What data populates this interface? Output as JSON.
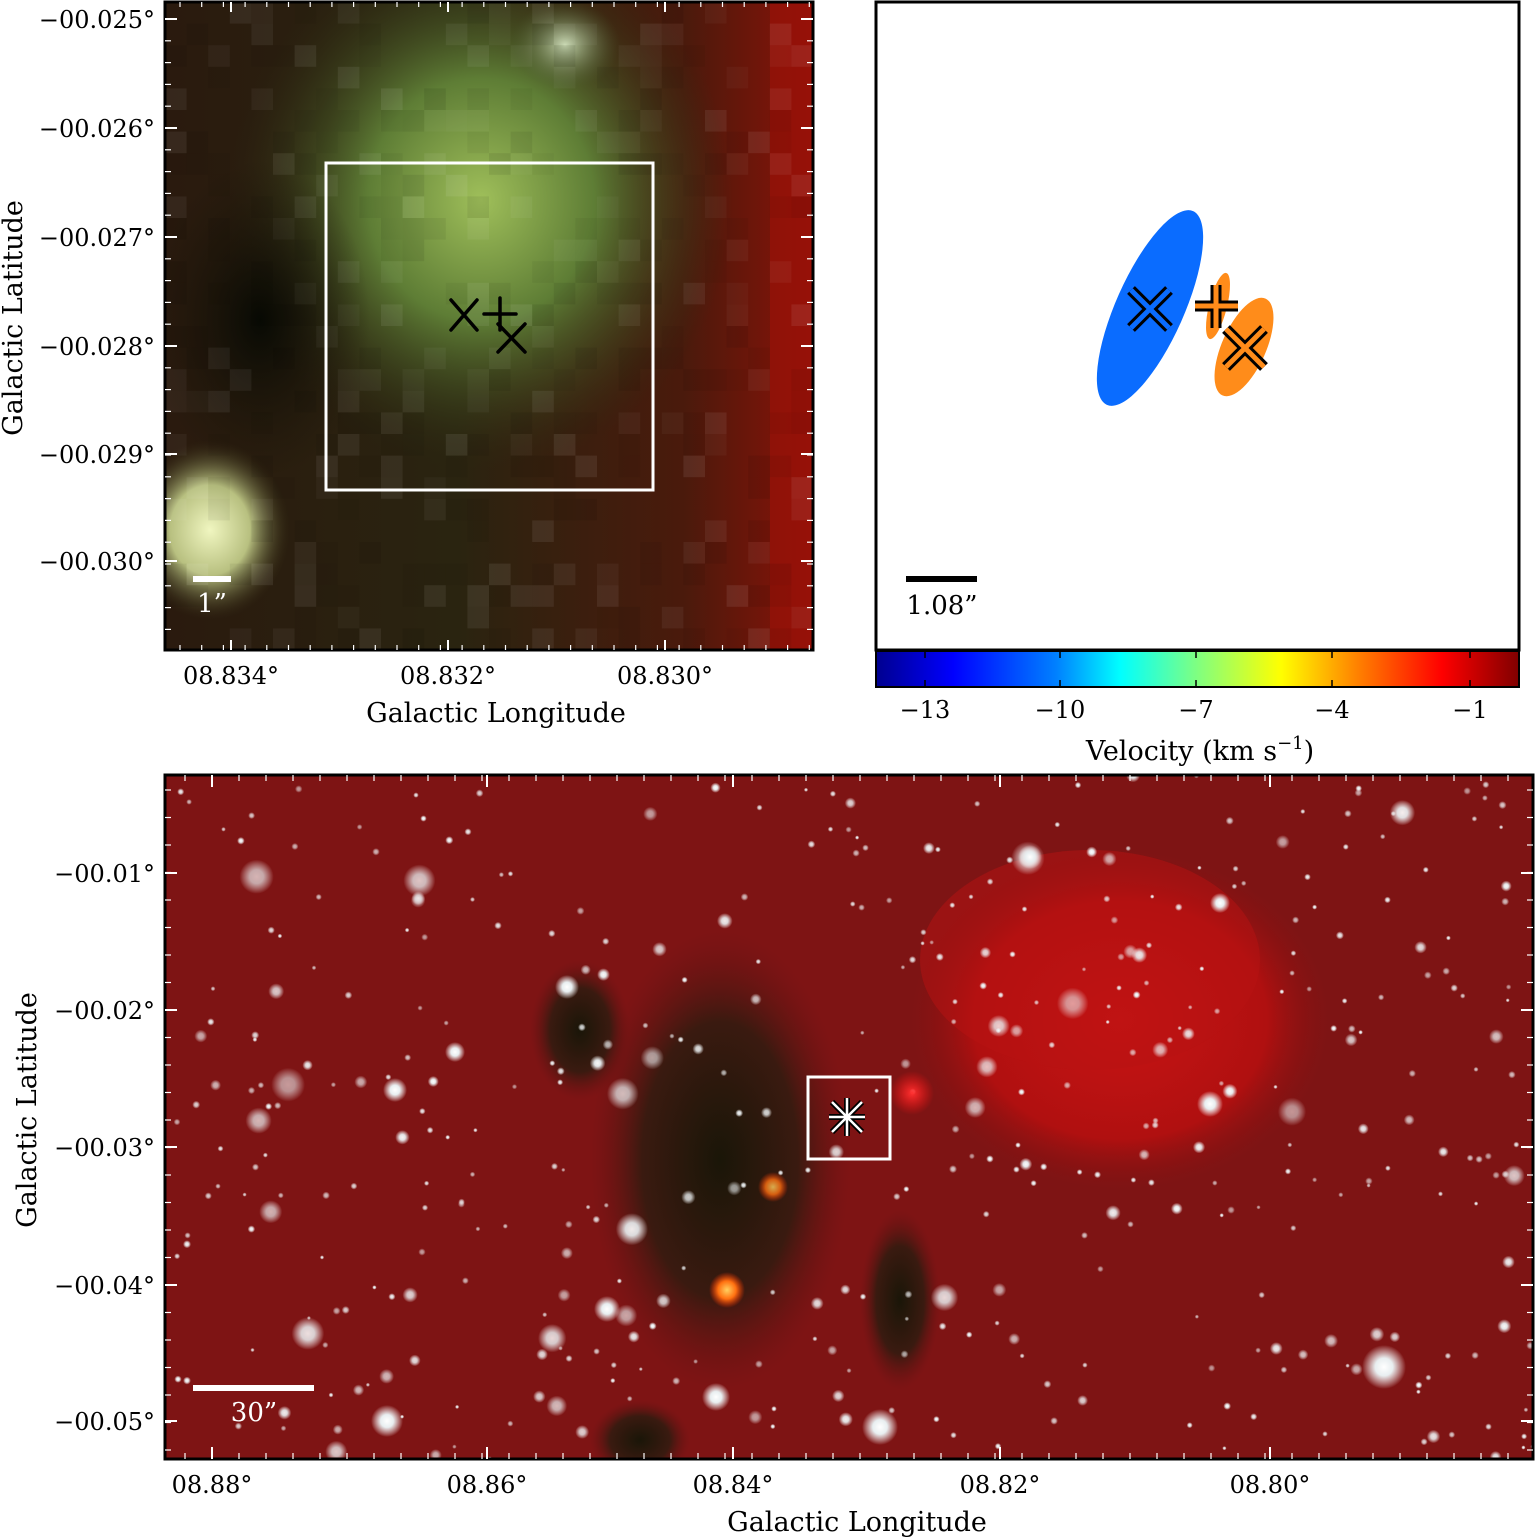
{
  "top_left_panel": {
    "x_axis_title": "Galactic Longitude",
    "y_axis_title": "Galactic Latitude",
    "x_ticks": [
      "08.834°",
      "08.832°",
      "08.830°"
    ],
    "y_ticks": [
      "−00.025°",
      "−00.026°",
      "−00.027°",
      "−00.028°",
      "−00.029°",
      "−00.030°"
    ],
    "scale_bar_label": "1”",
    "markers": [
      "cross-x",
      "plus",
      "cross-x"
    ]
  },
  "top_right_panel": {
    "scale_bar_label": "1.08”",
    "colorbar_title": "Velocity (km s",
    "colorbar_title_exp": "−1",
    "colorbar_title_end": ")",
    "colorbar_ticks": [
      "−13",
      "−10",
      "−7",
      "−4",
      "−1"
    ],
    "colorbar_stops": [
      "#00008f",
      "#0000ff",
      "#0080ff",
      "#00ffff",
      "#80ff80",
      "#ffff00",
      "#ff8000",
      "#ff0000",
      "#800000"
    ],
    "ellipse_colors": {
      "blue": "#0a6cff",
      "orange": "#ff8c1a"
    }
  },
  "bottom_panel": {
    "x_axis_title": "Galactic Longitude",
    "y_axis_title": "Galactic Latitude",
    "x_ticks": [
      "08.88°",
      "08.86°",
      "08.84°",
      "08.82°",
      "08.80°"
    ],
    "y_ticks": [
      "−00.01°",
      "−00.02°",
      "−00.03°",
      "−00.04°",
      "−00.05°"
    ],
    "scale_bar_label": "30”"
  }
}
